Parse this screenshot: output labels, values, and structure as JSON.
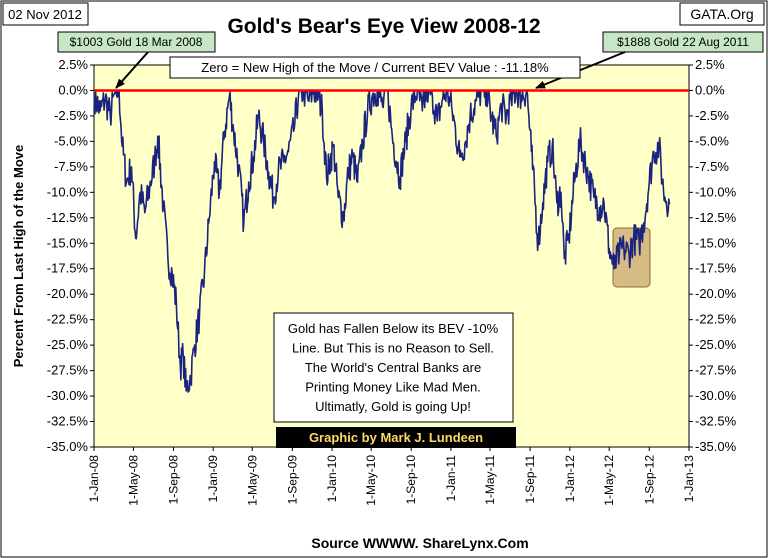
{
  "header": {
    "date_label": "02 Nov 2012",
    "source_badge": "GATA.Org",
    "footer_source": "Source WWWW. ShareLynx.Com"
  },
  "chart_data": {
    "type": "line",
    "title": "Gold's Bear's Eye View 2008-12",
    "ylabel": "Percent From Last High of the Move",
    "xlabel": "",
    "ylim": [
      -35,
      2.5
    ],
    "y_ticks": [
      2.5,
      0,
      -2.5,
      -5,
      -7.5,
      -10,
      -12.5,
      -15,
      -17.5,
      -20,
      -22.5,
      -25,
      -27.5,
      -30,
      -32.5,
      -35
    ],
    "y_tick_labels": [
      "2.5%",
      "0.0%",
      "-2.5%",
      "-5.0%",
      "-7.5%",
      "-10.0%",
      "-12.5%",
      "-15.0%",
      "-17.5%",
      "-20.0%",
      "-22.5%",
      "-25.0%",
      "-27.5%",
      "-30.0%",
      "-32.5%",
      "-35.0%"
    ],
    "x_ticks": [
      "2008-01-01",
      "2008-05-01",
      "2008-09-01",
      "2009-01-01",
      "2009-05-01",
      "2009-09-01",
      "2010-01-01",
      "2010-05-01",
      "2010-09-01",
      "2011-01-01",
      "2011-05-01",
      "2011-09-01",
      "2012-01-01",
      "2012-05-01",
      "2012-09-01",
      "2013-01-01"
    ],
    "x_tick_labels": [
      "1-Jan-08",
      "1-May-08",
      "1-Sep-08",
      "1-Jan-09",
      "1-May-09",
      "1-Sep-09",
      "1-Jan-10",
      "1-May-10",
      "1-Sep-10",
      "1-Jan-11",
      "1-May-11",
      "1-Sep-11",
      "1-Jan-12",
      "1-May-12",
      "1-Sep-12",
      "1-Jan-13"
    ],
    "xlim": [
      "2008-01-01",
      "2013-01-01"
    ],
    "grid": false,
    "colors": {
      "plot_bg": "#ffffc8",
      "line": "#1a237e",
      "zero_line": "#ff0000",
      "label_box_bg": "#c6e6c6",
      "highlight_box": "#c8a46e",
      "credit_bg": "#000000",
      "credit_text": "#ffd966"
    },
    "series": [
      {
        "x": [
          "2008-01-02",
          "2008-01-20",
          "2008-02-05",
          "2008-02-20",
          "2008-03-05",
          "2008-03-18",
          "2008-03-28",
          "2008-04-10",
          "2008-04-25",
          "2008-05-08",
          "2008-05-22",
          "2008-06-05",
          "2008-06-20",
          "2008-07-05",
          "2008-07-15",
          "2008-08-01",
          "2008-08-15",
          "2008-08-28",
          "2008-09-10",
          "2008-09-22",
          "2008-10-01",
          "2008-10-10",
          "2008-10-24",
          "2008-11-05",
          "2008-11-20",
          "2008-12-05",
          "2008-12-20",
          "2009-01-05",
          "2009-01-20",
          "2009-02-05",
          "2009-02-20",
          "2009-03-05",
          "2009-03-20",
          "2009-04-05",
          "2009-04-20",
          "2009-05-05",
          "2009-05-20",
          "2009-06-05",
          "2009-06-20",
          "2009-07-05",
          "2009-07-20",
          "2009-08-05",
          "2009-08-20",
          "2009-09-05",
          "2009-09-20",
          "2009-10-05",
          "2009-10-20",
          "2009-11-05",
          "2009-11-20",
          "2009-12-02",
          "2009-12-15",
          "2010-01-05",
          "2010-01-20",
          "2010-02-05",
          "2010-02-20",
          "2010-03-05",
          "2010-03-20",
          "2010-04-05",
          "2010-04-20",
          "2010-05-05",
          "2010-05-20",
          "2010-06-05",
          "2010-06-20",
          "2010-07-05",
          "2010-07-28",
          "2010-08-15",
          "2010-09-01",
          "2010-09-20",
          "2010-10-05",
          "2010-10-20",
          "2010-11-05",
          "2010-11-20",
          "2010-12-05",
          "2010-12-20",
          "2011-01-05",
          "2011-01-28",
          "2011-02-15",
          "2011-03-01",
          "2011-03-20",
          "2011-04-05",
          "2011-04-20",
          "2011-05-05",
          "2011-05-20",
          "2011-06-05",
          "2011-06-20",
          "2011-07-05",
          "2011-07-20",
          "2011-08-05",
          "2011-08-22",
          "2011-09-05",
          "2011-09-26",
          "2011-10-10",
          "2011-10-25",
          "2011-11-08",
          "2011-11-22",
          "2011-12-05",
          "2011-12-15",
          "2011-12-29",
          "2012-01-15",
          "2012-02-01",
          "2012-02-28",
          "2012-03-15",
          "2012-04-01",
          "2012-04-15",
          "2012-05-01",
          "2012-05-16",
          "2012-06-01",
          "2012-06-15",
          "2012-07-01",
          "2012-07-15",
          "2012-08-01",
          "2012-08-15",
          "2012-09-01",
          "2012-09-15",
          "2012-10-01",
          "2012-10-15",
          "2012-11-02"
        ],
        "y": [
          -0.5,
          -2.0,
          -0.8,
          -2.5,
          -0.3,
          0.0,
          -5.5,
          -9.0,
          -7.5,
          -14.5,
          -10.0,
          -12.0,
          -9.5,
          -7.0,
          -4.5,
          -11.5,
          -16.5,
          -18.0,
          -21.0,
          -27.0,
          -26.0,
          -29.5,
          -28.0,
          -25.0,
          -22.0,
          -18.0,
          -12.5,
          -7.0,
          -10.0,
          -4.0,
          -0.5,
          -4.0,
          -7.5,
          -13.0,
          -9.0,
          -6.5,
          -2.5,
          -5.0,
          -8.0,
          -10.5,
          -8.0,
          -7.0,
          -6.0,
          -4.0,
          -0.5,
          0.0,
          -1.0,
          0.0,
          -0.5,
          -2.0,
          -8.5,
          -5.5,
          -10.5,
          -12.5,
          -8.0,
          -6.5,
          -9.0,
          -5.0,
          -2.0,
          -0.5,
          0.0,
          -1.5,
          0.0,
          -4.5,
          -8.5,
          -5.0,
          -1.5,
          0.0,
          -2.0,
          0.0,
          -0.5,
          -3.0,
          -1.0,
          0.0,
          -2.0,
          -6.5,
          -5.0,
          -2.5,
          -1.0,
          0.0,
          0.0,
          -2.5,
          -4.5,
          -1.5,
          -2.5,
          -1.0,
          0.0,
          -0.5,
          0.0,
          -6.0,
          -15.0,
          -11.0,
          -7.0,
          -5.5,
          -11.0,
          -10.0,
          -16.5,
          -14.5,
          -9.0,
          -5.0,
          -8.5,
          -10.5,
          -11.5,
          -11.0,
          -15.5,
          -17.5,
          -16.0,
          -15.5,
          -16.0,
          -14.5,
          -15.0,
          -13.0,
          -9.0,
          -6.0,
          -5.5,
          -10.0,
          -11.18
        ]
      }
    ],
    "annotations": {
      "zero_note": "Zero = New High of the Move / Current  BEV Value : -11.18%",
      "callout_left": "$1003  Gold 18 Mar 2008",
      "callout_right": "$1888  Gold 22 Aug 2011",
      "comment_lines": [
        "Gold has Fallen Below its BEV -10%",
        "Line.  But This is no Reason to Sell.",
        "The World's Central Banks are",
        "Printing Money Like Mad Men.",
        "Ultimatly, Gold is going Up!"
      ],
      "credit": "Graphic by Mark J. Lundeen"
    }
  }
}
